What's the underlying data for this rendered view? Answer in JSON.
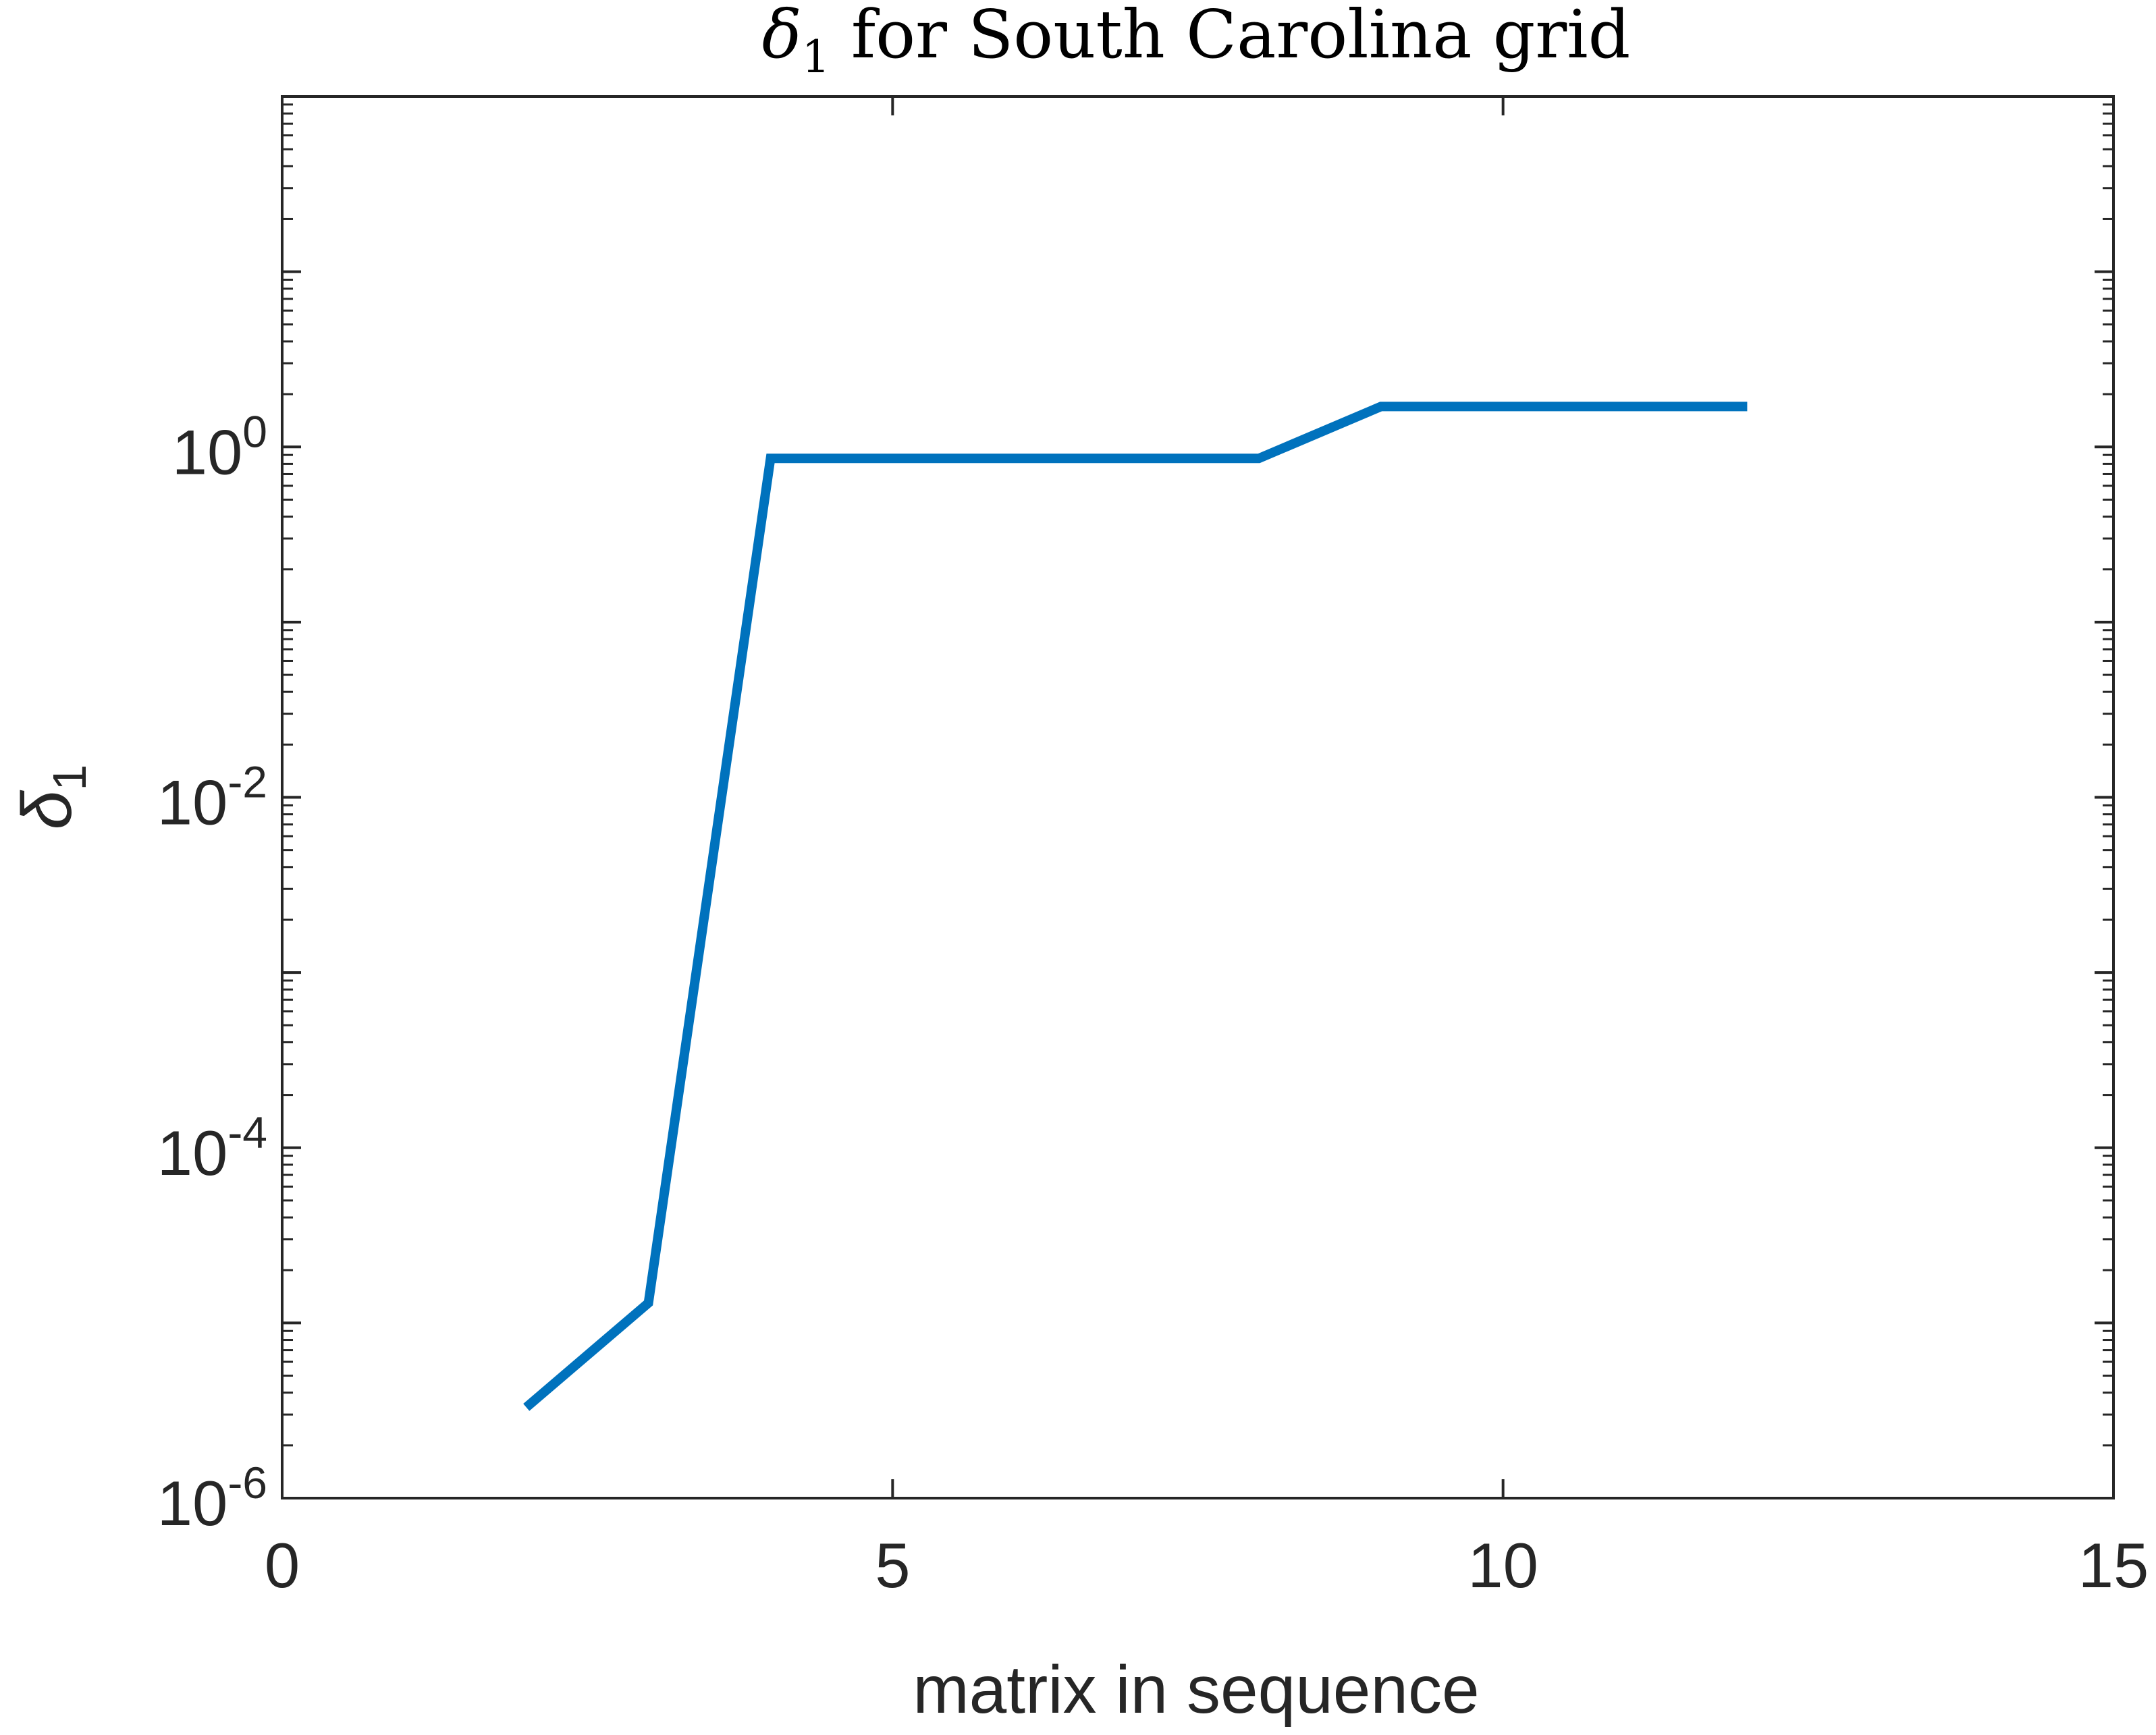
{
  "chart_data": {
    "type": "line",
    "title": "δ₁ for South Carolina grid",
    "title_parts": {
      "symbol": "δ",
      "subscript": "1",
      "rest": " for South Carolina grid"
    },
    "xlabel": "matrix in sequence",
    "ylabel": "δ₁",
    "ylabel_parts": {
      "symbol": "δ",
      "subscript": "1"
    },
    "x_scale": "linear",
    "y_scale": "log",
    "xlim": [
      0,
      15
    ],
    "ylim": [
      1e-06,
      100
    ],
    "x_ticks": [
      0,
      5,
      10,
      15
    ],
    "x_tick_labels": [
      "0",
      "5",
      "10",
      "15"
    ],
    "y_ticks": [
      1e-06,
      0.0001,
      0.01,
      1
    ],
    "y_tick_labels": [
      {
        "base": "10",
        "exp": "-6"
      },
      {
        "base": "10",
        "exp": "-4"
      },
      {
        "base": "10",
        "exp": "-2"
      },
      {
        "base": "10",
        "exp": "0"
      }
    ],
    "grid": false,
    "box": true,
    "series": [
      {
        "color": "#0072BD",
        "x": [
          2,
          3,
          4,
          5,
          6,
          7,
          8,
          9,
          10,
          11,
          12
        ],
        "y": [
          3.3e-06,
          1.3e-05,
          0.86,
          0.86,
          0.86,
          0.86,
          0.86,
          1.7,
          1.7,
          1.7,
          1.7
        ]
      }
    ]
  }
}
